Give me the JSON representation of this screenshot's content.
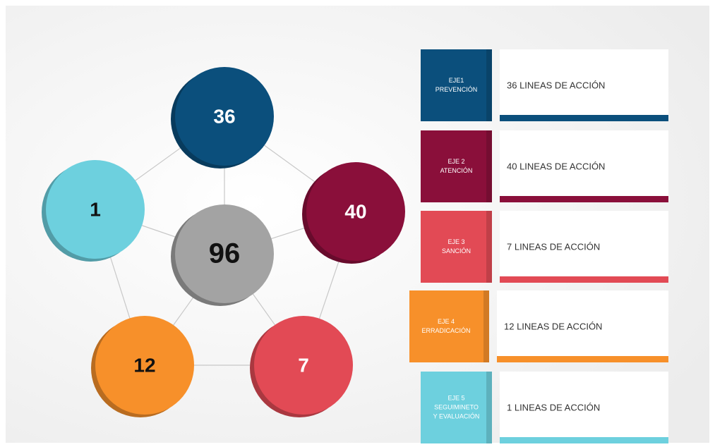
{
  "center": {
    "value": 96,
    "color": "#a3a3a3"
  },
  "nodes": [
    {
      "value": 36,
      "color": "#0b4f7c",
      "text_color": "#ffffff"
    },
    {
      "value": 40,
      "color": "#8a0f3a",
      "text_color": "#ffffff"
    },
    {
      "value": 7,
      "color": "#e24a55",
      "text_color": "#ffffff"
    },
    {
      "value": 12,
      "color": "#f7902a",
      "text_color": "#111111"
    },
    {
      "value": 1,
      "color": "#6dd0de",
      "text_color": "#111111"
    }
  ],
  "rows": [
    {
      "title": [
        "EJE1",
        "PREVENCIÓN"
      ],
      "text": "36 LINEAS DE ACCIÓN",
      "color": "#0b4f7c"
    },
    {
      "title": [
        "EJE 2",
        "ATENCIÓN"
      ],
      "text": "40 LINEAS DE ACCIÓN",
      "color": "#8a0f3a"
    },
    {
      "title": [
        "EJE 3",
        "SANCIÓN"
      ],
      "text": "7 LINEAS DE ACCIÓN",
      "color": "#e24a55"
    },
    {
      "title": [
        "EJE 4",
        "ERRADICACIÓN"
      ],
      "text": "12 LINEAS DE ACCIÓN",
      "color": "#f7902a"
    },
    {
      "title": [
        "EJE 5",
        "SEGUIMINETO",
        "Y EVALUACIÓN"
      ],
      "text": "1 LINEAS DE ACCIÓN",
      "color": "#6dd0de"
    }
  ]
}
